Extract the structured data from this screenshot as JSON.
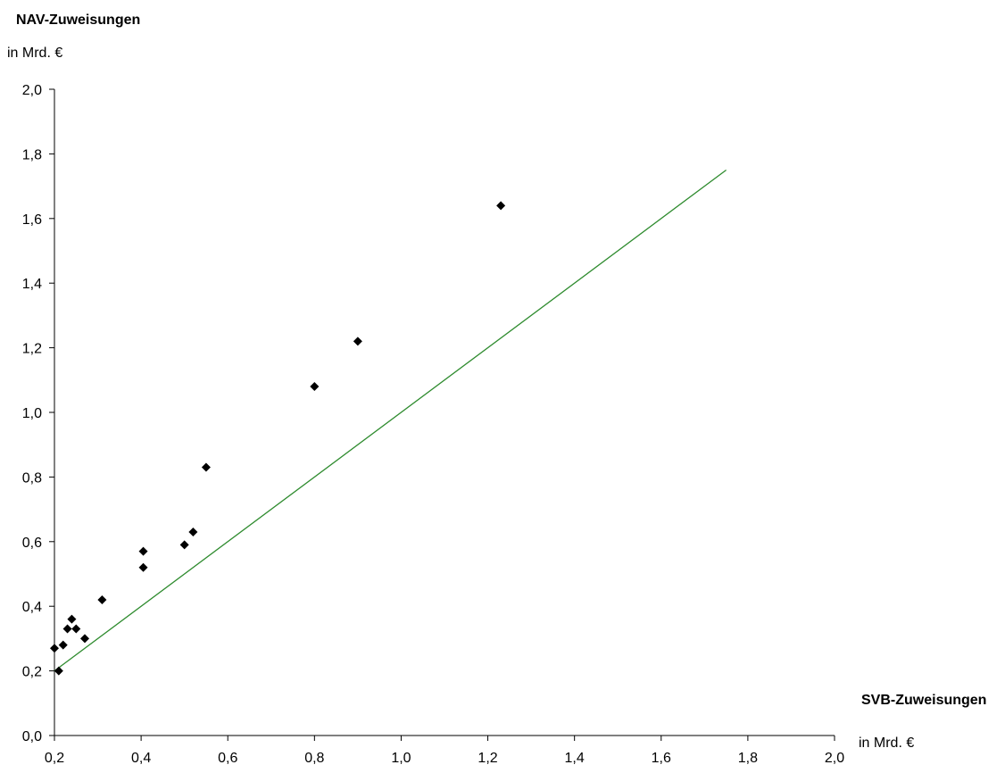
{
  "chart_data": {
    "type": "scatter",
    "title": "",
    "ylabel": "NAV-Zuweisungen",
    "ylabel_unit": "in Mrd. €",
    "xlabel": "SVB-Zuweisungen",
    "xlabel_unit": "in Mrd. €",
    "xlim": [
      0.2,
      2.0
    ],
    "ylim": [
      0.0,
      2.0
    ],
    "x_ticks": [
      "0,2",
      "0,4",
      "0,6",
      "0,8",
      "1,0",
      "1,2",
      "1,4",
      "1,6",
      "1,8",
      "2,0"
    ],
    "y_ticks": [
      "0,0",
      "0,2",
      "0,4",
      "0,6",
      "0,8",
      "1,0",
      "1,2",
      "1,4",
      "1,6",
      "1,8",
      "2,0"
    ],
    "grid": false,
    "legend": "none",
    "series": [
      {
        "marker": "diamond",
        "color": "#000000",
        "points": [
          {
            "x": 0.2,
            "y": 0.27
          },
          {
            "x": 0.21,
            "y": 0.2
          },
          {
            "x": 0.22,
            "y": 0.28
          },
          {
            "x": 0.23,
            "y": 0.33
          },
          {
            "x": 0.24,
            "y": 0.36
          },
          {
            "x": 0.25,
            "y": 0.33
          },
          {
            "x": 0.27,
            "y": 0.3
          },
          {
            "x": 0.31,
            "y": 0.42
          },
          {
            "x": 0.405,
            "y": 0.57
          },
          {
            "x": 0.405,
            "y": 0.52
          },
          {
            "x": 0.5,
            "y": 0.59
          },
          {
            "x": 0.52,
            "y": 0.63
          },
          {
            "x": 0.55,
            "y": 0.83
          },
          {
            "x": 0.8,
            "y": 1.08
          },
          {
            "x": 0.9,
            "y": 1.22
          },
          {
            "x": 1.23,
            "y": 1.64
          }
        ]
      }
    ],
    "reference_line": {
      "color": "#2e8b2e",
      "points": [
        {
          "x": 0.2,
          "y": 0.2
        },
        {
          "x": 1.75,
          "y": 1.75
        }
      ]
    }
  }
}
